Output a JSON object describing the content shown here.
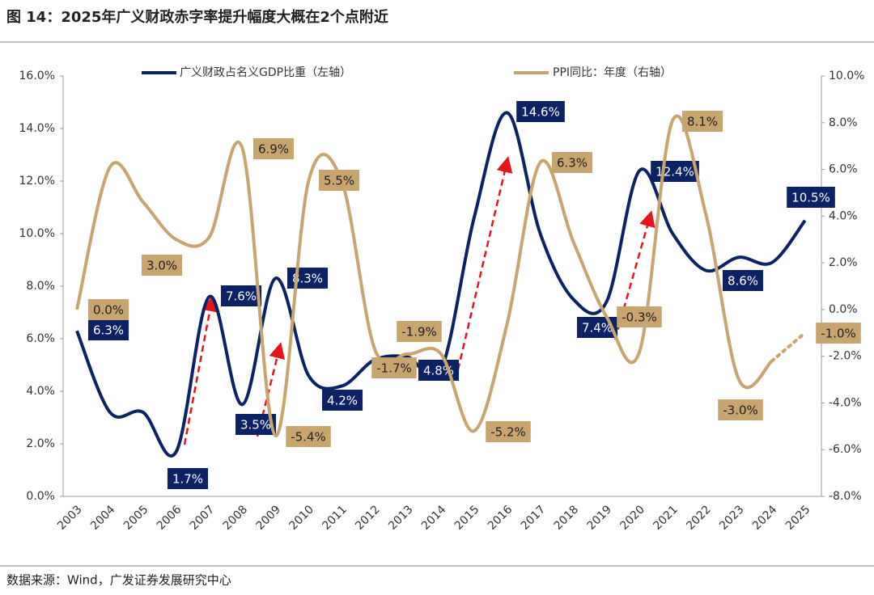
{
  "chart_data": {
    "type": "line",
    "title": "图 14：2025年广义财政赤字率提升幅度大概在2个点附近",
    "source": "数据来源：Wind，广发证券发展研究中心",
    "categories": [
      "2003",
      "2004",
      "2005",
      "2006",
      "2007",
      "2008",
      "2009",
      "2010",
      "2011",
      "2012",
      "2013",
      "2014",
      "2015",
      "2016",
      "2017",
      "2018",
      "2019",
      "2020",
      "2021",
      "2022",
      "2023",
      "2024",
      "2025"
    ],
    "series": [
      {
        "name": "广义财政占名义GDP比重（左轴）",
        "color": "#0b2265",
        "axis": "y",
        "values": [
          6.3,
          3.2,
          3.2,
          1.7,
          7.6,
          3.5,
          8.3,
          4.6,
          4.2,
          5.2,
          5.3,
          4.8,
          10.6,
          14.6,
          10.0,
          7.5,
          7.4,
          12.4,
          10.0,
          8.6,
          9.1,
          8.9,
          10.5
        ],
        "value_labels": [
          "6.3%",
          null,
          null,
          "1.7%",
          "7.6%",
          "3.5%",
          "8.3%",
          null,
          "4.2%",
          null,
          null,
          "4.8%",
          null,
          "14.6%",
          null,
          null,
          "7.4%",
          "12.4%",
          null,
          "8.6%",
          null,
          null,
          "10.5%"
        ]
      },
      {
        "name": "PPI同比：年度（右轴）",
        "color": "#c8a46e",
        "axis": "y2",
        "values": [
          0.0,
          6.1,
          4.6,
          3.0,
          3.1,
          6.9,
          -5.4,
          5.5,
          5.5,
          -1.7,
          -1.9,
          -1.9,
          -5.2,
          -0.6,
          6.3,
          2.9,
          -0.3,
          -1.8,
          8.1,
          4.1,
          -3.0,
          -2.2,
          -1.0
        ],
        "value_labels": [
          "0.0%",
          null,
          null,
          "3.0%",
          null,
          "6.9%",
          "-5.4%",
          "5.5%",
          null,
          "-1.7%",
          "-1.9%",
          null,
          "-5.2%",
          null,
          "6.3%",
          null,
          "-0.3%",
          null,
          "8.1%",
          null,
          "-3.0%",
          null,
          "-1.0%"
        ]
      }
    ],
    "ylim": [
      0,
      16
    ],
    "yticks": [
      {
        "value": 0,
        "label": "0.0%"
      },
      {
        "value": 2,
        "label": "2.0%"
      },
      {
        "value": 4,
        "label": "4.0%"
      },
      {
        "value": 6,
        "label": "6.0%"
      },
      {
        "value": 8,
        "label": "8.0%"
      },
      {
        "value": 10,
        "label": "10.0%"
      },
      {
        "value": 12,
        "label": "12.0%"
      },
      {
        "value": 14,
        "label": "14.0%"
      },
      {
        "value": 16,
        "label": "16.0%"
      }
    ],
    "y2lim": [
      -8,
      10
    ],
    "y2ticks": [
      {
        "value": -8,
        "label": "-8.0%"
      },
      {
        "value": -6,
        "label": "-6.0%"
      },
      {
        "value": -4,
        "label": "-4.0%"
      },
      {
        "value": -2,
        "label": "-2.0%"
      },
      {
        "value": 0,
        "label": "0.0%"
      },
      {
        "value": 2,
        "label": "2.0%"
      },
      {
        "value": 4,
        "label": "4.0%"
      },
      {
        "value": 6,
        "label": "6.0%"
      },
      {
        "value": 8,
        "label": "8.0%"
      },
      {
        "value": 10,
        "label": "10.0%"
      }
    ],
    "grid": false
  }
}
